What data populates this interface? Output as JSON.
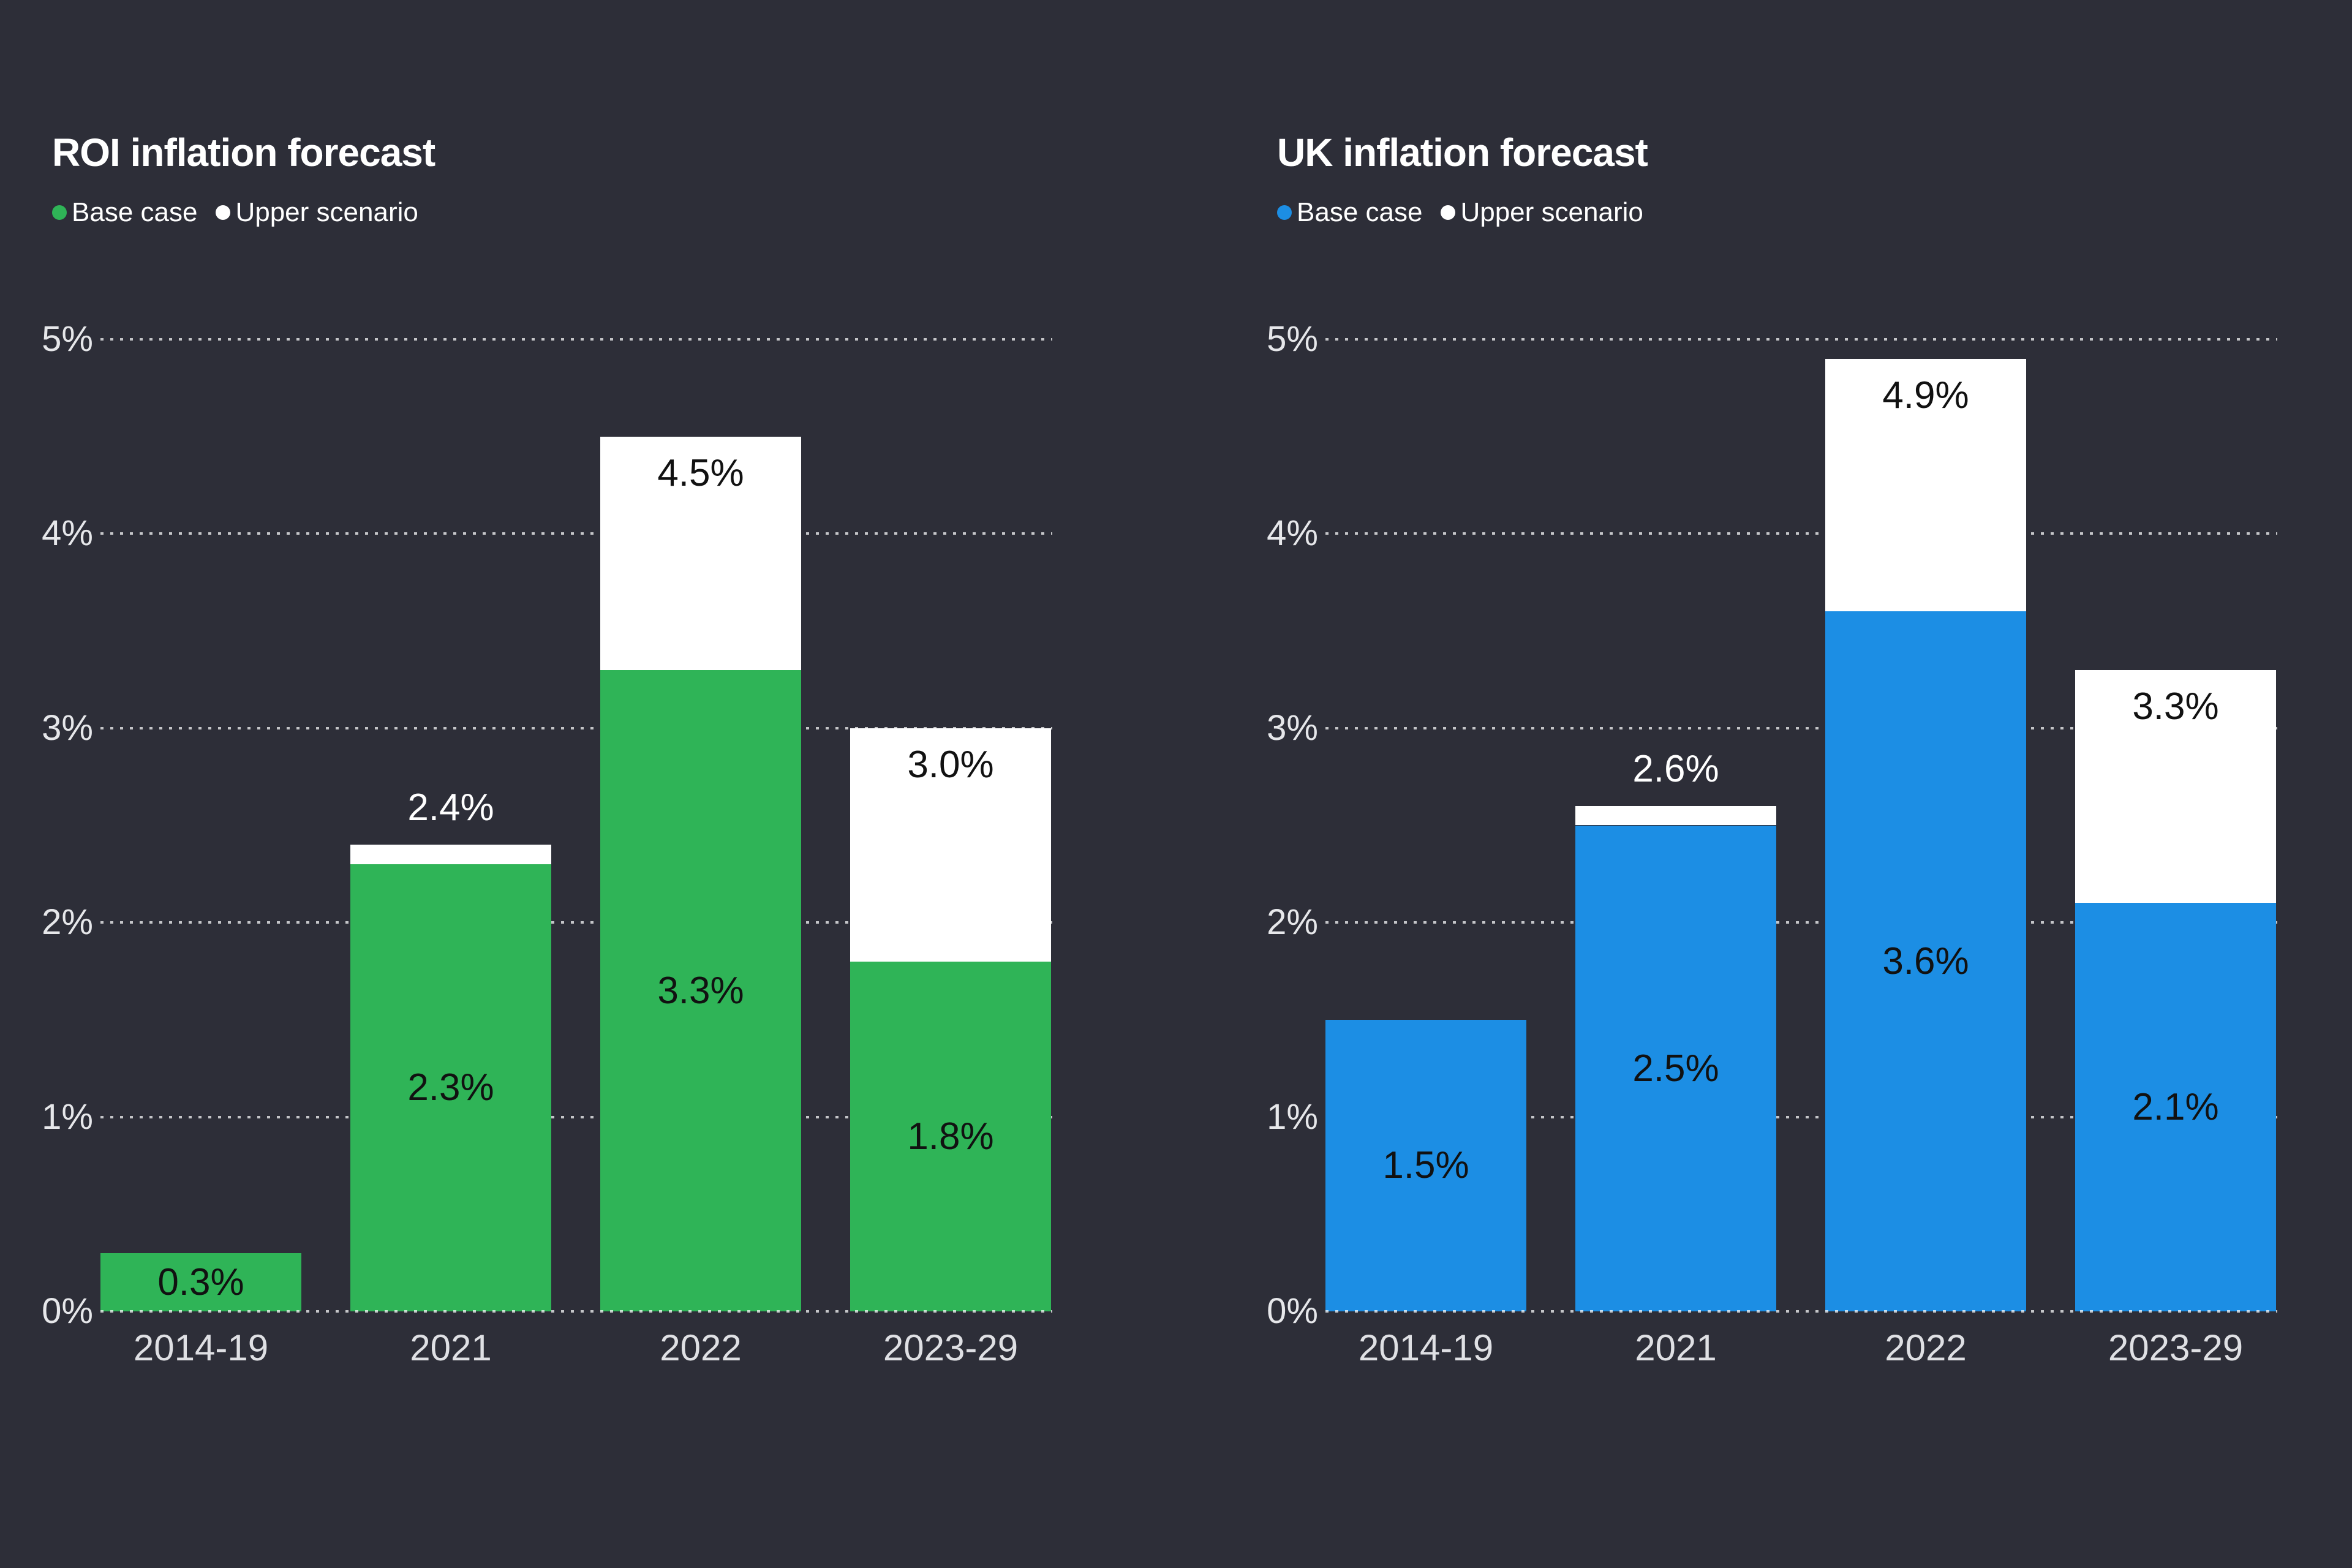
{
  "background": "#2D2E38",
  "chart_data": [
    {
      "type": "bar",
      "stacked": true,
      "title": "ROI inflation forecast",
      "legend": [
        {
          "label": "Base case",
          "color": "#2FB457"
        },
        {
          "label": "Upper scenario",
          "color": "#FFFFFF"
        }
      ],
      "categories": [
        "2014-19",
        "2021",
        "2022",
        "2023-29"
      ],
      "series": [
        {
          "name": "Base case",
          "color": "#2FB457",
          "label_color": "#111111",
          "values": [
            0.3,
            2.3,
            3.3,
            1.8
          ],
          "labels": [
            "0.3%",
            "2.3%",
            "3.3%",
            "1.8%"
          ]
        },
        {
          "name": "Upper scenario",
          "color": "#FFFFFF",
          "label_color": "#111111",
          "values": [
            null,
            2.4,
            4.5,
            3.0
          ],
          "labels": [
            null,
            "2.4%",
            "4.5%",
            "3.0%"
          ]
        }
      ],
      "y_ticks": {
        "values": [
          0,
          1,
          2,
          3,
          4,
          5
        ],
        "labels": [
          "0%",
          "1%",
          "2%",
          "3%",
          "4%",
          "5%"
        ]
      },
      "ylim": [
        0,
        5
      ],
      "grid": {
        "style": "dotted",
        "orientation": "horizontal",
        "color": "rgba(255,255,255,0.72)"
      }
    },
    {
      "type": "bar",
      "stacked": true,
      "title": "UK inflation forecast",
      "legend": [
        {
          "label": "Base case",
          "color": "#1C8EE4"
        },
        {
          "label": "Upper scenario",
          "color": "#FFFFFF"
        }
      ],
      "categories": [
        "2014-19",
        "2021",
        "2022",
        "2023-29"
      ],
      "series": [
        {
          "name": "Base case",
          "color": "#1C8EE4",
          "label_color": "#111111",
          "values": [
            1.5,
            2.5,
            3.6,
            2.1
          ],
          "labels": [
            "1.5%",
            "2.5%",
            "3.6%",
            "2.1%"
          ]
        },
        {
          "name": "Upper scenario",
          "color": "#FFFFFF",
          "label_color": "#111111",
          "values": [
            null,
            2.6,
            4.9,
            3.3
          ],
          "labels": [
            null,
            "2.6%",
            "4.9%",
            "3.3%"
          ]
        }
      ],
      "y_ticks": {
        "values": [
          0,
          1,
          2,
          3,
          4,
          5
        ],
        "labels": [
          "0%",
          "1%",
          "2%",
          "3%",
          "4%",
          "5%"
        ]
      },
      "ylim": [
        0,
        5
      ],
      "grid": {
        "style": "dotted",
        "orientation": "horizontal",
        "color": "rgba(255,255,255,0.72)"
      }
    }
  ]
}
